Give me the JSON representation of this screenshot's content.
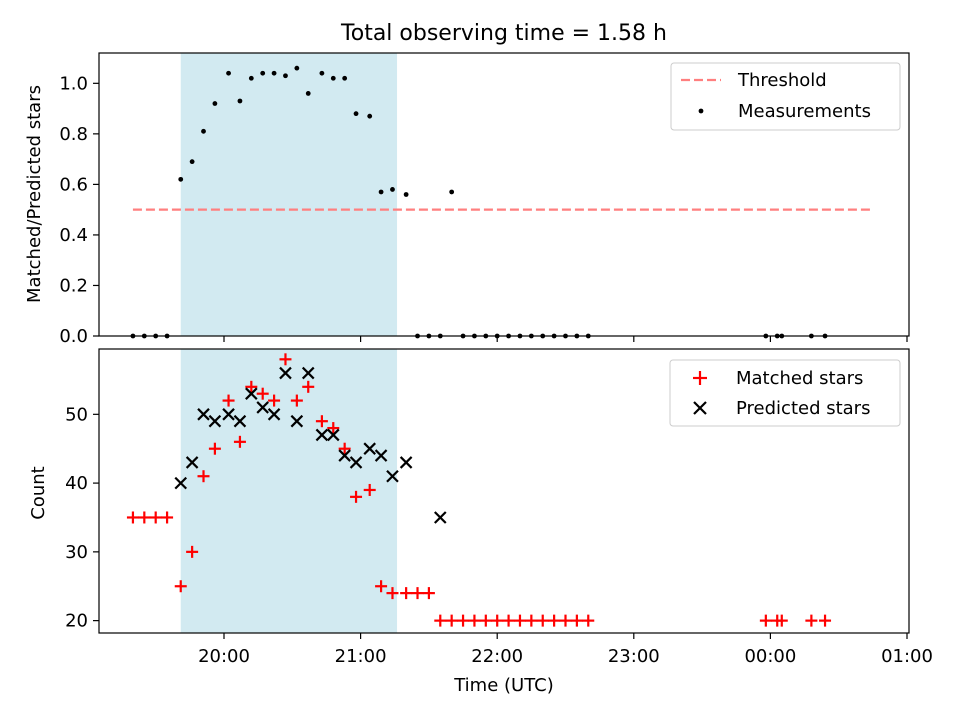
{
  "title": "Total observing time = 1.58 h",
  "chart_data": [
    {
      "type": "scatter",
      "ylabel": "Matched/Predicted stars",
      "ylim": [
        0,
        1.12
      ],
      "yticks": [
        "0.0",
        "0.2",
        "0.4",
        "0.6",
        "0.8",
        "1.0"
      ],
      "legend_position": "top-right",
      "shaded_region": {
        "x": [
          "19:41",
          "21:16"
        ],
        "color": "#add8e6"
      },
      "threshold": {
        "name": "Threshold",
        "y": 0.5,
        "x": [
          "19:20",
          "00:45"
        ],
        "color": "#ff7f7f",
        "style": "dashed"
      },
      "series": [
        {
          "name": "Measurements",
          "color": "#000000",
          "marker": "dot",
          "x": [
            "19:20",
            "19:25",
            "19:30",
            "19:35",
            "19:41",
            "19:46",
            "19:51",
            "19:56",
            "20:02",
            "20:07",
            "20:12",
            "20:17",
            "20:22",
            "20:27",
            "20:32",
            "20:37",
            "20:43",
            "20:48",
            "20:53",
            "20:58",
            "21:04",
            "21:09",
            "21:14",
            "21:20",
            "21:25",
            "21:30",
            "21:35",
            "21:40",
            "21:45",
            "21:50",
            "21:55",
            "22:00",
            "22:05",
            "22:10",
            "22:15",
            "22:20",
            "22:25",
            "22:30",
            "22:35",
            "22:40",
            "23:58",
            "00:03",
            "00:05",
            "00:18",
            "00:24"
          ],
          "y": [
            0,
            0,
            0,
            0,
            0.62,
            0.69,
            0.81,
            0.92,
            1.04,
            0.93,
            1.02,
            1.04,
            1.04,
            1.03,
            1.06,
            0.96,
            1.04,
            1.02,
            1.02,
            0.88,
            0.87,
            0.57,
            0.58,
            0.56,
            0,
            0,
            0,
            0.57,
            0,
            0,
            0,
            0,
            0,
            0,
            0,
            0,
            0,
            0,
            0,
            0,
            0,
            0,
            0,
            0,
            0
          ]
        }
      ]
    },
    {
      "type": "scatter",
      "ylabel": "Count",
      "xlabel": "Time (UTC)",
      "ylim": [
        18.2,
        59.5
      ],
      "yticks": [
        "20",
        "30",
        "40",
        "50"
      ],
      "xticks": [
        "20:00",
        "21:00",
        "22:00",
        "23:00",
        "00:00",
        "01:00"
      ],
      "legend_position": "top-right",
      "shaded_region": {
        "x": [
          "19:41",
          "21:16"
        ],
        "color": "#add8e6"
      },
      "series": [
        {
          "name": "Matched stars",
          "color": "#ff0000",
          "marker": "plus",
          "x": [
            "19:20",
            "19:25",
            "19:30",
            "19:35",
            "19:41",
            "19:46",
            "19:51",
            "19:56",
            "20:02",
            "20:07",
            "20:12",
            "20:17",
            "20:22",
            "20:27",
            "20:32",
            "20:37",
            "20:43",
            "20:48",
            "20:53",
            "20:58",
            "21:04",
            "21:09",
            "21:14",
            "21:20",
            "21:25",
            "21:30",
            "21:35",
            "21:40",
            "21:45",
            "21:50",
            "21:55",
            "22:00",
            "22:05",
            "22:10",
            "22:15",
            "22:20",
            "22:25",
            "22:30",
            "22:35",
            "22:40",
            "23:58",
            "00:03",
            "00:05",
            "00:18",
            "00:24"
          ],
          "y": [
            35,
            35,
            35,
            35,
            25,
            30,
            41,
            45,
            52,
            46,
            54,
            53,
            52,
            58,
            52,
            54,
            49,
            48,
            45,
            38,
            39,
            25,
            24,
            24,
            24,
            24,
            20,
            20,
            20,
            20,
            20,
            20,
            20,
            20,
            20,
            20,
            20,
            20,
            20,
            20,
            20,
            20,
            20,
            20,
            20
          ]
        },
        {
          "name": "Predicted stars",
          "color": "#000000",
          "marker": "x",
          "x": [
            "19:41",
            "19:46",
            "19:51",
            "19:56",
            "20:02",
            "20:07",
            "20:12",
            "20:17",
            "20:22",
            "20:27",
            "20:32",
            "20:37",
            "20:43",
            "20:48",
            "20:53",
            "20:58",
            "21:04",
            "21:09",
            "21:14",
            "21:20",
            "21:35"
          ],
          "y": [
            40,
            43,
            50,
            49,
            50,
            49,
            53,
            51,
            50,
            56,
            49,
            56,
            47,
            47,
            44,
            43,
            45,
            44,
            41,
            43,
            35
          ]
        }
      ]
    }
  ]
}
